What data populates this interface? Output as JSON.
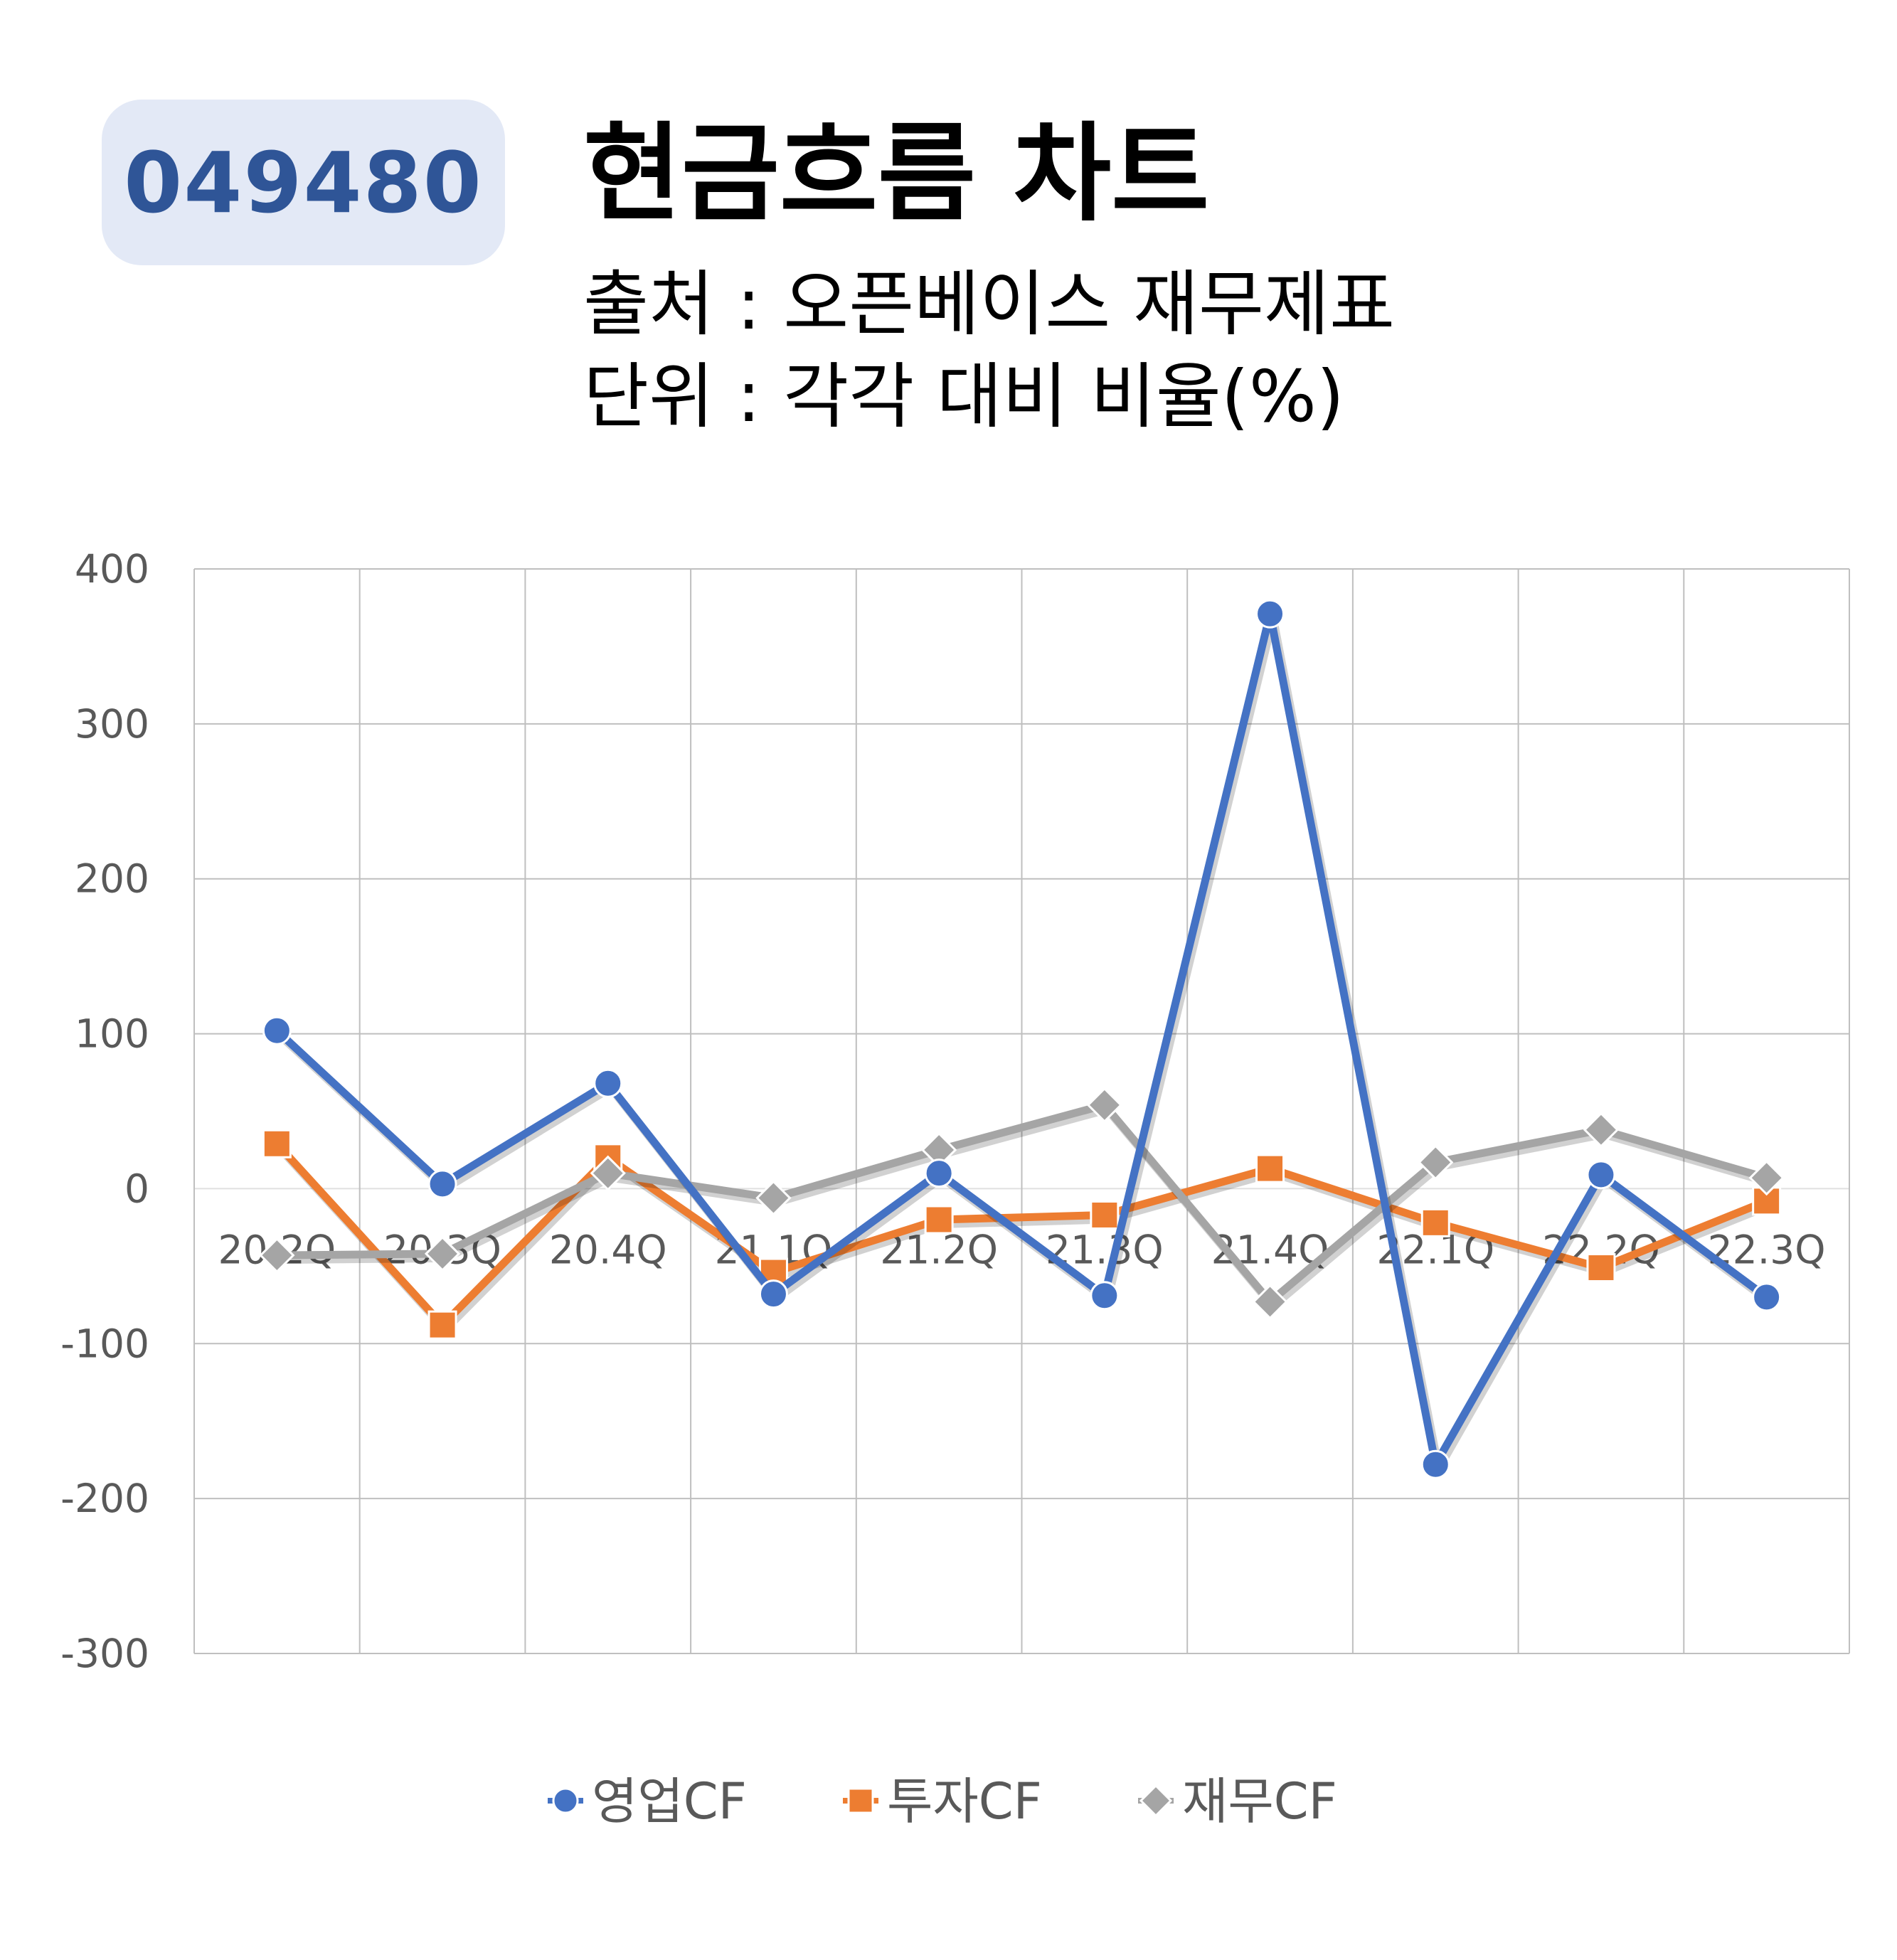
{
  "header": {
    "ticker": "049480",
    "title": "현금흐름 차트",
    "source": "출처 : 오픈베이스 재무제표",
    "unit": "단위 : 각각 대비 비율(%)"
  },
  "chart_data": {
    "type": "line",
    "categories": [
      "20.2Q",
      "20.3Q",
      "20.4Q",
      "21.1Q",
      "21.2Q",
      "21.3Q",
      "21.4Q",
      "22.1Q",
      "22.2Q",
      "22.3Q"
    ],
    "ylim": [
      -300,
      400
    ],
    "yticks": [
      400,
      300,
      200,
      100,
      0,
      -100,
      -200,
      -300
    ],
    "grid": true,
    "legend_position": "bottom",
    "series": [
      {
        "name": "영업CF",
        "color": "#4472c4",
        "marker": "circle",
        "values": [
          102,
          3,
          68,
          -68,
          10,
          -69,
          371,
          -178,
          9,
          -70
        ]
      },
      {
        "name": "투자CF",
        "color": "#ed7d31",
        "marker": "square",
        "values": [
          29,
          -88,
          20,
          -54,
          -20,
          -17,
          13,
          -22,
          -51,
          -8
        ]
      },
      {
        "name": "재무CF",
        "color": "#a5a5a5",
        "marker": "diamond",
        "values": [
          -43,
          -42,
          10,
          -6,
          25,
          54,
          -73,
          17,
          38,
          7
        ]
      }
    ]
  }
}
